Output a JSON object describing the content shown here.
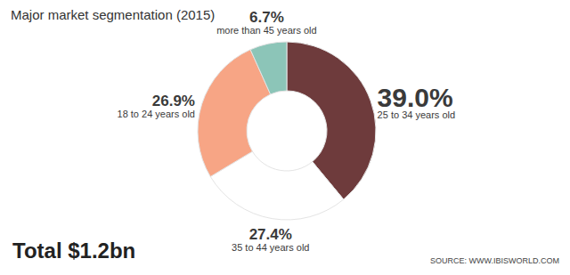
{
  "chart_data": {
    "type": "donut",
    "title": "Major market segmentation (2015)",
    "categories": [
      "25 to 34 years old",
      "35 to 44 years old",
      "18 to 24 years old",
      "more than 45 years old"
    ],
    "values": [
      39.0,
      27.4,
      26.9,
      6.7
    ],
    "value_labels": [
      "39.0%",
      "27.4%",
      "26.9%",
      "6.7%"
    ],
    "colors": [
      "#6e3b3c",
      "#ffffff",
      "#f7a585",
      "#8cc5b8"
    ],
    "data_labels": true,
    "annotations": [
      "Total $1.2bn",
      "SOURCE: WWW.IBISWORLD.COM"
    ]
  }
}
